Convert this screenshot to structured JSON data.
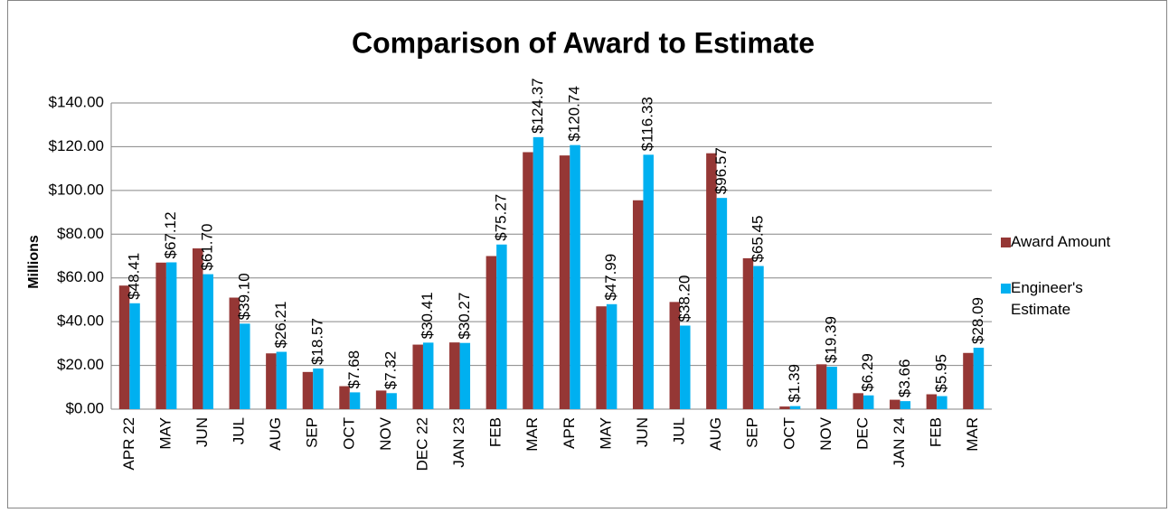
{
  "chart_data": {
    "type": "bar",
    "title": "Comparison of Award to Estimate",
    "y_label": "Millions",
    "categories": [
      "APR 22",
      "MAY",
      "JUN",
      "JUL",
      "AUG",
      "SEP",
      "OCT",
      "NOV",
      "DEC 22",
      "JAN 23",
      "FEB",
      "MAR",
      "APR",
      "MAY",
      "JUN",
      "JUL",
      "AUG",
      "SEP",
      "OCT",
      "NOV",
      "DEC",
      "JAN 24",
      "FEB",
      "MAR"
    ],
    "series": [
      {
        "name": "Award Amount",
        "color": "#953735",
        "values": [
          56.5,
          67,
          73.5,
          51,
          25.5,
          17,
          10.5,
          8.5,
          29.5,
          30.5,
          70,
          117.5,
          116,
          47,
          95.5,
          49,
          117,
          69,
          1.2,
          20.5,
          7.3,
          4.3,
          6.8,
          25.7
        ]
      },
      {
        "name": "Engineer's Estimate",
        "color": "#00b0f0",
        "values": [
          48.41,
          67.12,
          61.7,
          39.1,
          26.21,
          18.57,
          7.68,
          7.32,
          30.41,
          30.27,
          75.27,
          124.37,
          120.74,
          47.99,
          116.33,
          38.2,
          96.57,
          65.45,
          1.39,
          19.39,
          6.29,
          3.66,
          5.95,
          28.09
        ],
        "value_labels": [
          "$48.41",
          "$67.12",
          "$61.70",
          "$39.10",
          "$26.21",
          "$18.57",
          "$7.68",
          "$7.32",
          "$30.41",
          "$30.27",
          "$75.27",
          "$124.37",
          "$120.74",
          "$47.99",
          "$116.33",
          "$38.20",
          "$96.57",
          "$65.45",
          "$1.39",
          "$19.39",
          "$6.29",
          "$3.66",
          "$5.95",
          "$28.09"
        ]
      }
    ],
    "ylim": [
      0,
      140
    ],
    "yticks": [
      {
        "value": 0,
        "label": "$0.00"
      },
      {
        "value": 20,
        "label": "$20.00"
      },
      {
        "value": 40,
        "label": "$40.00"
      },
      {
        "value": 60,
        "label": "$60.00"
      },
      {
        "value": 80,
        "label": "$80.00"
      },
      {
        "value": 100,
        "label": "$100.00"
      },
      {
        "value": 120,
        "label": "$120.00"
      },
      {
        "value": 140,
        "label": "$140.00"
      }
    ],
    "grid": true,
    "legend": "right"
  }
}
